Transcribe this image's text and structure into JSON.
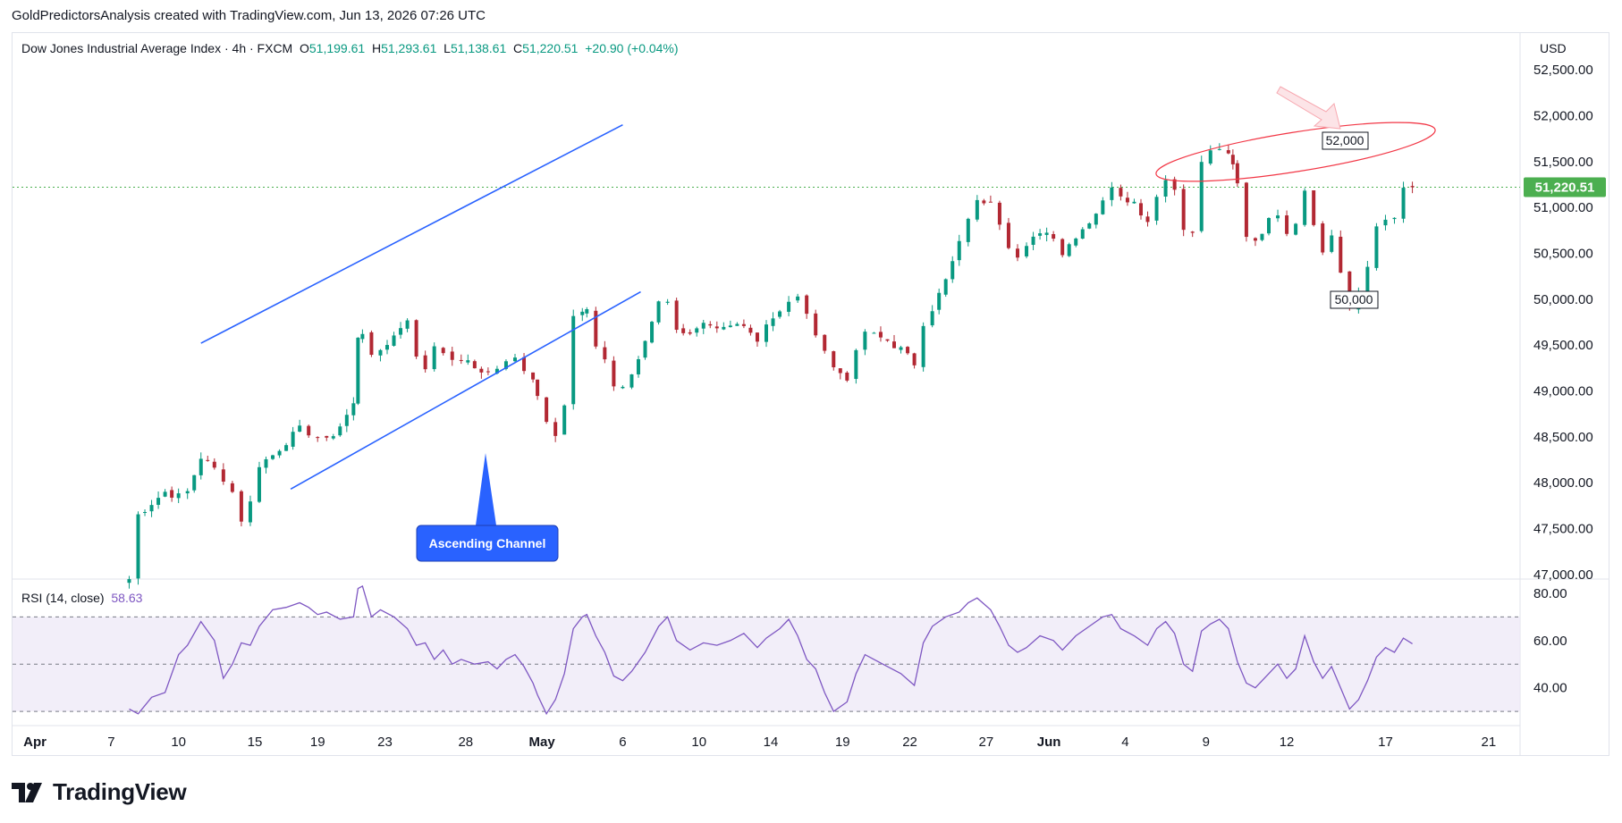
{
  "header": {
    "caption": "GoldPredictorsAnalysis created with TradingView.com, Jun 13, 2026 07:26 UTC"
  },
  "legend": {
    "symbol": "Dow Jones Industrial Average Index · 4h · FXCM",
    "open_label": "O",
    "open": "51,199.61",
    "high_label": "H",
    "high": "51,293.61",
    "low_label": "L",
    "low": "51,138.61",
    "close_label": "C",
    "close": "51,220.51",
    "change": "+20.90 (+0.04%)"
  },
  "price_axis": {
    "currency": "USD",
    "ticks": [
      "52,500.00",
      "52,000.00",
      "51,500.00",
      "51,000.00",
      "50,500.00",
      "50,000.00",
      "49,500.00",
      "49,000.00",
      "48,500.00",
      "48,000.00",
      "47,500.00",
      "47,000.00"
    ],
    "last_price": "51,220.51"
  },
  "rsi": {
    "label": "RSI (14, close)",
    "value": "58.63",
    "ticks": [
      "80.00",
      "60.00",
      "40.00"
    ]
  },
  "time_axis": {
    "ticks": [
      "Apr",
      "7",
      "10",
      "15",
      "19",
      "23",
      "28",
      "May",
      "6",
      "10",
      "14",
      "19",
      "22",
      "27",
      "Jun",
      "4",
      "9",
      "12",
      "17",
      "21"
    ]
  },
  "annotations": {
    "upper_target": "52,000",
    "lower_support": "50,000",
    "pattern": "Ascending Channel"
  },
  "colors": {
    "up": "#089981",
    "down": "#b22833",
    "channel": "#2962ff",
    "rsi": "#7e57c2",
    "ellipse": "#f23645",
    "last_price": "#4caf50"
  },
  "brand": {
    "name": "TradingView"
  },
  "chart_data": {
    "type": "candlestick",
    "interval": "4h",
    "price_range": [
      46950,
      52900
    ],
    "rsi_range": [
      24,
      86
    ],
    "rsi_bands": [
      30,
      50,
      70
    ],
    "channel": {
      "upper": [
        [
          47.3,
          49520
        ],
        [
          52.0,
          51900
        ]
      ],
      "lower": [
        [
          48.3,
          47930
        ],
        [
          52.2,
          50080
        ]
      ]
    },
    "last_price": 51220.51,
    "close_path": [
      [
        46.5,
        46950
      ],
      [
        46.6,
        47650
      ],
      [
        46.75,
        47780
      ],
      [
        46.9,
        47900
      ],
      [
        47.05,
        47850
      ],
      [
        47.15,
        47900
      ],
      [
        47.3,
        48280
      ],
      [
        47.45,
        48150
      ],
      [
        47.55,
        48050
      ],
      [
        47.65,
        47900
      ],
      [
        47.75,
        47600
      ],
      [
        47.85,
        47780
      ],
      [
        47.95,
        48200
      ],
      [
        48.1,
        48300
      ],
      [
        48.25,
        48450
      ],
      [
        48.4,
        48580
      ],
      [
        48.5,
        48550
      ],
      [
        48.6,
        48500
      ],
      [
        48.7,
        48450
      ],
      [
        48.85,
        48620
      ],
      [
        49.0,
        48850
      ],
      [
        49.05,
        49600
      ],
      [
        49.1,
        49650
      ],
      [
        49.2,
        49350
      ],
      [
        49.3,
        49450
      ],
      [
        49.45,
        49600
      ],
      [
        49.6,
        49800
      ],
      [
        49.7,
        49350
      ],
      [
        49.8,
        49250
      ],
      [
        49.9,
        49500
      ],
      [
        50.0,
        49450
      ],
      [
        50.1,
        49300
      ],
      [
        50.2,
        49350
      ],
      [
        50.35,
        49250
      ],
      [
        50.5,
        49200
      ],
      [
        50.6,
        49250
      ],
      [
        50.7,
        49300
      ],
      [
        50.8,
        49350
      ],
      [
        50.9,
        49250
      ],
      [
        51.0,
        49150
      ],
      [
        51.05,
        48950
      ],
      [
        51.15,
        48700
      ],
      [
        51.25,
        48550
      ],
      [
        51.35,
        48850
      ],
      [
        51.45,
        49800
      ],
      [
        51.55,
        49850
      ],
      [
        51.6,
        49850
      ],
      [
        51.7,
        49500
      ],
      [
        51.8,
        49350
      ],
      [
        51.9,
        49050
      ],
      [
        52.0,
        49050
      ],
      [
        52.1,
        49150
      ],
      [
        52.25,
        49550
      ],
      [
        52.4,
        50000
      ],
      [
        52.5,
        49950
      ],
      [
        52.6,
        49700
      ],
      [
        52.75,
        49600
      ],
      [
        52.9,
        49700
      ],
      [
        53.05,
        49650
      ],
      [
        53.2,
        49700
      ],
      [
        53.35,
        49750
      ],
      [
        53.5,
        49550
      ],
      [
        53.6,
        49750
      ],
      [
        53.75,
        49850
      ],
      [
        53.85,
        49950
      ],
      [
        53.95,
        50050
      ],
      [
        54.05,
        49800
      ],
      [
        54.15,
        49650
      ],
      [
        54.25,
        49450
      ],
      [
        54.35,
        49250
      ],
      [
        54.5,
        49150
      ],
      [
        54.6,
        49400
      ],
      [
        54.7,
        49650
      ],
      [
        54.8,
        49600
      ],
      [
        54.95,
        49550
      ],
      [
        55.1,
        49450
      ],
      [
        55.25,
        49300
      ],
      [
        55.35,
        49750
      ],
      [
        55.45,
        49900
      ],
      [
        55.6,
        50200
      ],
      [
        55.75,
        50600
      ],
      [
        55.85,
        50900
      ],
      [
        55.95,
        51050
      ],
      [
        56.1,
        51100
      ],
      [
        56.2,
        50850
      ],
      [
        56.3,
        50600
      ],
      [
        56.4,
        50450
      ],
      [
        56.5,
        50550
      ],
      [
        56.65,
        50750
      ],
      [
        56.8,
        50700
      ],
      [
        56.9,
        50500
      ],
      [
        57.05,
        50700
      ],
      [
        57.2,
        50850
      ],
      [
        57.35,
        51050
      ],
      [
        57.45,
        51250
      ],
      [
        57.55,
        51150
      ],
      [
        57.7,
        51050
      ],
      [
        57.85,
        50850
      ],
      [
        57.95,
        51150
      ],
      [
        58.05,
        51300
      ],
      [
        58.15,
        51200
      ],
      [
        58.25,
        50800
      ],
      [
        58.35,
        50700
      ],
      [
        58.45,
        51500
      ],
      [
        58.55,
        51600
      ],
      [
        58.65,
        51650
      ],
      [
        58.75,
        51550
      ],
      [
        58.8,
        51450
      ],
      [
        58.85,
        51250
      ],
      [
        58.95,
        50700
      ],
      [
        59.05,
        50650
      ],
      [
        59.2,
        50850
      ],
      [
        59.3,
        50950
      ],
      [
        59.4,
        50750
      ],
      [
        59.5,
        50850
      ],
      [
        59.6,
        51200
      ],
      [
        59.7,
        50850
      ],
      [
        59.8,
        50500
      ],
      [
        59.9,
        50700
      ],
      [
        60.0,
        50300
      ],
      [
        60.1,
        49900
      ],
      [
        60.2,
        50050
      ],
      [
        60.3,
        50350
      ],
      [
        60.4,
        50800
      ],
      [
        60.5,
        50900
      ],
      [
        60.6,
        50850
      ],
      [
        60.7,
        51200
      ],
      [
        60.8,
        51220.51
      ]
    ],
    "rsi_path": [
      [
        46.5,
        31
      ],
      [
        46.6,
        29
      ],
      [
        46.75,
        36
      ],
      [
        46.9,
        38
      ],
      [
        47.05,
        54
      ],
      [
        47.15,
        58
      ],
      [
        47.3,
        68
      ],
      [
        47.45,
        60
      ],
      [
        47.55,
        44
      ],
      [
        47.65,
        50
      ],
      [
        47.75,
        59
      ],
      [
        47.85,
        58
      ],
      [
        47.95,
        66
      ],
      [
        48.1,
        73
      ],
      [
        48.25,
        74
      ],
      [
        48.4,
        76
      ],
      [
        48.5,
        74
      ],
      [
        48.6,
        71
      ],
      [
        48.7,
        72
      ],
      [
        48.85,
        69
      ],
      [
        49.0,
        70
      ],
      [
        49.05,
        82
      ],
      [
        49.1,
        83
      ],
      [
        49.2,
        70
      ],
      [
        49.3,
        73
      ],
      [
        49.45,
        70
      ],
      [
        49.6,
        65
      ],
      [
        49.7,
        58
      ],
      [
        49.8,
        59
      ],
      [
        49.9,
        52
      ],
      [
        50.0,
        56
      ],
      [
        50.1,
        50
      ],
      [
        50.2,
        52
      ],
      [
        50.35,
        50
      ],
      [
        50.5,
        51
      ],
      [
        50.6,
        48
      ],
      [
        50.7,
        52
      ],
      [
        50.8,
        54
      ],
      [
        50.9,
        49
      ],
      [
        51.0,
        42
      ],
      [
        51.05,
        37
      ],
      [
        51.15,
        29
      ],
      [
        51.25,
        35
      ],
      [
        51.35,
        46
      ],
      [
        51.45,
        65
      ],
      [
        51.55,
        70
      ],
      [
        51.6,
        71
      ],
      [
        51.7,
        62
      ],
      [
        51.8,
        55
      ],
      [
        51.9,
        45
      ],
      [
        52.0,
        43
      ],
      [
        52.1,
        47
      ],
      [
        52.25,
        55
      ],
      [
        52.4,
        66
      ],
      [
        52.5,
        70
      ],
      [
        52.6,
        60
      ],
      [
        52.75,
        56
      ],
      [
        52.9,
        59
      ],
      [
        53.05,
        58
      ],
      [
        53.2,
        60
      ],
      [
        53.35,
        63
      ],
      [
        53.5,
        57
      ],
      [
        53.6,
        61
      ],
      [
        53.75,
        65
      ],
      [
        53.85,
        69
      ],
      [
        53.95,
        62
      ],
      [
        54.05,
        52
      ],
      [
        54.15,
        48
      ],
      [
        54.25,
        38
      ],
      [
        54.35,
        30
      ],
      [
        54.5,
        34
      ],
      [
        54.6,
        46
      ],
      [
        54.7,
        54
      ],
      [
        54.8,
        52
      ],
      [
        54.95,
        49
      ],
      [
        55.1,
        46
      ],
      [
        55.25,
        41
      ],
      [
        55.35,
        59
      ],
      [
        55.45,
        66
      ],
      [
        55.6,
        70
      ],
      [
        55.75,
        72
      ],
      [
        55.85,
        76
      ],
      [
        55.95,
        78
      ],
      [
        56.1,
        73
      ],
      [
        56.2,
        66
      ],
      [
        56.3,
        58
      ],
      [
        56.4,
        55
      ],
      [
        56.5,
        57
      ],
      [
        56.65,
        62
      ],
      [
        56.8,
        60
      ],
      [
        56.9,
        56
      ],
      [
        57.05,
        62
      ],
      [
        57.2,
        66
      ],
      [
        57.35,
        70
      ],
      [
        57.45,
        71
      ],
      [
        57.55,
        65
      ],
      [
        57.7,
        62
      ],
      [
        57.85,
        58
      ],
      [
        57.95,
        65
      ],
      [
        58.05,
        68
      ],
      [
        58.15,
        63
      ],
      [
        58.25,
        50
      ],
      [
        58.35,
        47
      ],
      [
        58.45,
        64
      ],
      [
        58.55,
        67
      ],
      [
        58.65,
        69
      ],
      [
        58.75,
        65
      ],
      [
        58.8,
        58
      ],
      [
        58.85,
        51
      ],
      [
        58.95,
        42
      ],
      [
        59.05,
        40
      ],
      [
        59.2,
        46
      ],
      [
        59.3,
        50
      ],
      [
        59.4,
        44
      ],
      [
        59.5,
        48
      ],
      [
        59.6,
        62
      ],
      [
        59.7,
        51
      ],
      [
        59.8,
        44
      ],
      [
        59.9,
        49
      ],
      [
        60.0,
        40
      ],
      [
        60.1,
        31
      ],
      [
        60.2,
        35
      ],
      [
        60.3,
        43
      ],
      [
        60.4,
        53
      ],
      [
        60.5,
        57
      ],
      [
        60.6,
        55
      ],
      [
        60.7,
        61
      ],
      [
        60.8,
        58.63
      ]
    ]
  }
}
